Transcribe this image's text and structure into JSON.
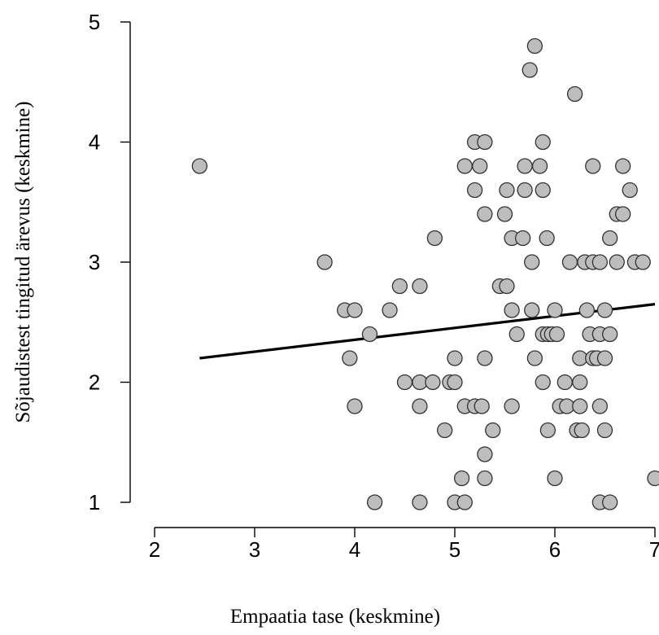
{
  "chart_data": {
    "type": "scatter",
    "title": "",
    "xlabel": "Empaatia tase (keskmine)",
    "ylabel": "Sõjaudistest tingitud ärevus (keskmine)",
    "xlim": [
      2,
      7
    ],
    "ylim": [
      1,
      5
    ],
    "x_ticks": [
      "2",
      "3",
      "4",
      "5",
      "6",
      "7"
    ],
    "y_ticks": [
      "1",
      "2",
      "3",
      "4",
      "5"
    ],
    "grid": false,
    "point_color": "#bdbdbd",
    "regression_line": {
      "x": [
        2.45,
        7.0
      ],
      "y": [
        2.2,
        2.65
      ]
    },
    "points": [
      {
        "x": 2.45,
        "y": 3.8
      },
      {
        "x": 3.7,
        "y": 3.0
      },
      {
        "x": 3.9,
        "y": 2.6
      },
      {
        "x": 4.0,
        "y": 2.6
      },
      {
        "x": 3.95,
        "y": 2.2
      },
      {
        "x": 4.15,
        "y": 2.4
      },
      {
        "x": 4.0,
        "y": 1.8
      },
      {
        "x": 4.2,
        "y": 1.0
      },
      {
        "x": 4.35,
        "y": 2.6
      },
      {
        "x": 4.45,
        "y": 2.8
      },
      {
        "x": 4.65,
        "y": 2.8
      },
      {
        "x": 4.5,
        "y": 2.0
      },
      {
        "x": 4.65,
        "y": 2.0
      },
      {
        "x": 4.78,
        "y": 2.0
      },
      {
        "x": 4.65,
        "y": 1.8
      },
      {
        "x": 4.65,
        "y": 1.0
      },
      {
        "x": 4.8,
        "y": 3.2
      },
      {
        "x": 4.9,
        "y": 1.6
      },
      {
        "x": 4.95,
        "y": 2.0
      },
      {
        "x": 5.0,
        "y": 2.0
      },
      {
        "x": 5.0,
        "y": 2.2
      },
      {
        "x": 5.0,
        "y": 1.0
      },
      {
        "x": 5.07,
        "y": 1.2
      },
      {
        "x": 5.1,
        "y": 1.0
      },
      {
        "x": 5.1,
        "y": 1.8
      },
      {
        "x": 5.2,
        "y": 1.8
      },
      {
        "x": 5.27,
        "y": 1.8
      },
      {
        "x": 5.1,
        "y": 3.8
      },
      {
        "x": 5.2,
        "y": 4.0
      },
      {
        "x": 5.25,
        "y": 3.8
      },
      {
        "x": 5.2,
        "y": 3.6
      },
      {
        "x": 5.3,
        "y": 4.0
      },
      {
        "x": 5.3,
        "y": 3.4
      },
      {
        "x": 5.3,
        "y": 2.2
      },
      {
        "x": 5.3,
        "y": 1.4
      },
      {
        "x": 5.3,
        "y": 1.2
      },
      {
        "x": 5.38,
        "y": 1.6
      },
      {
        "x": 5.45,
        "y": 2.8
      },
      {
        "x": 5.52,
        "y": 2.8
      },
      {
        "x": 5.5,
        "y": 3.4
      },
      {
        "x": 5.52,
        "y": 3.6
      },
      {
        "x": 5.57,
        "y": 3.2
      },
      {
        "x": 5.57,
        "y": 2.6
      },
      {
        "x": 5.57,
        "y": 1.8
      },
      {
        "x": 5.62,
        "y": 2.4
      },
      {
        "x": 5.68,
        "y": 3.2
      },
      {
        "x": 5.7,
        "y": 3.6
      },
      {
        "x": 5.7,
        "y": 3.8
      },
      {
        "x": 5.75,
        "y": 4.6
      },
      {
        "x": 5.8,
        "y": 4.8
      },
      {
        "x": 5.77,
        "y": 3.0
      },
      {
        "x": 5.77,
        "y": 2.6
      },
      {
        "x": 5.8,
        "y": 2.2
      },
      {
        "x": 5.85,
        "y": 3.8
      },
      {
        "x": 5.88,
        "y": 4.0
      },
      {
        "x": 5.88,
        "y": 3.6
      },
      {
        "x": 5.92,
        "y": 3.2
      },
      {
        "x": 5.88,
        "y": 2.4
      },
      {
        "x": 5.93,
        "y": 2.4
      },
      {
        "x": 5.88,
        "y": 2.0
      },
      {
        "x": 5.93,
        "y": 1.6
      },
      {
        "x": 5.97,
        "y": 2.4
      },
      {
        "x": 6.0,
        "y": 2.6
      },
      {
        "x": 6.02,
        "y": 2.4
      },
      {
        "x": 6.05,
        "y": 1.8
      },
      {
        "x": 6.0,
        "y": 1.2
      },
      {
        "x": 6.1,
        "y": 2.0
      },
      {
        "x": 6.12,
        "y": 1.8
      },
      {
        "x": 6.15,
        "y": 3.0
      },
      {
        "x": 6.2,
        "y": 4.4
      },
      {
        "x": 6.22,
        "y": 1.6
      },
      {
        "x": 6.25,
        "y": 2.2
      },
      {
        "x": 6.25,
        "y": 2.0
      },
      {
        "x": 6.25,
        "y": 1.8
      },
      {
        "x": 6.27,
        "y": 1.6
      },
      {
        "x": 6.3,
        "y": 3.0
      },
      {
        "x": 6.32,
        "y": 2.6
      },
      {
        "x": 6.35,
        "y": 2.4
      },
      {
        "x": 6.38,
        "y": 3.0
      },
      {
        "x": 6.38,
        "y": 3.8
      },
      {
        "x": 6.38,
        "y": 2.2
      },
      {
        "x": 6.42,
        "y": 2.2
      },
      {
        "x": 6.45,
        "y": 3.0
      },
      {
        "x": 6.45,
        "y": 2.4
      },
      {
        "x": 6.45,
        "y": 1.8
      },
      {
        "x": 6.45,
        "y": 1.0
      },
      {
        "x": 6.5,
        "y": 2.6
      },
      {
        "x": 6.5,
        "y": 2.2
      },
      {
        "x": 6.5,
        "y": 1.6
      },
      {
        "x": 6.55,
        "y": 3.2
      },
      {
        "x": 6.55,
        "y": 2.4
      },
      {
        "x": 6.55,
        "y": 1.0
      },
      {
        "x": 6.62,
        "y": 3.4
      },
      {
        "x": 6.62,
        "y": 3.0
      },
      {
        "x": 6.68,
        "y": 3.4
      },
      {
        "x": 6.68,
        "y": 3.8
      },
      {
        "x": 6.75,
        "y": 3.6
      },
      {
        "x": 6.8,
        "y": 3.0
      },
      {
        "x": 6.88,
        "y": 3.0
      },
      {
        "x": 7.0,
        "y": 1.2
      }
    ]
  }
}
